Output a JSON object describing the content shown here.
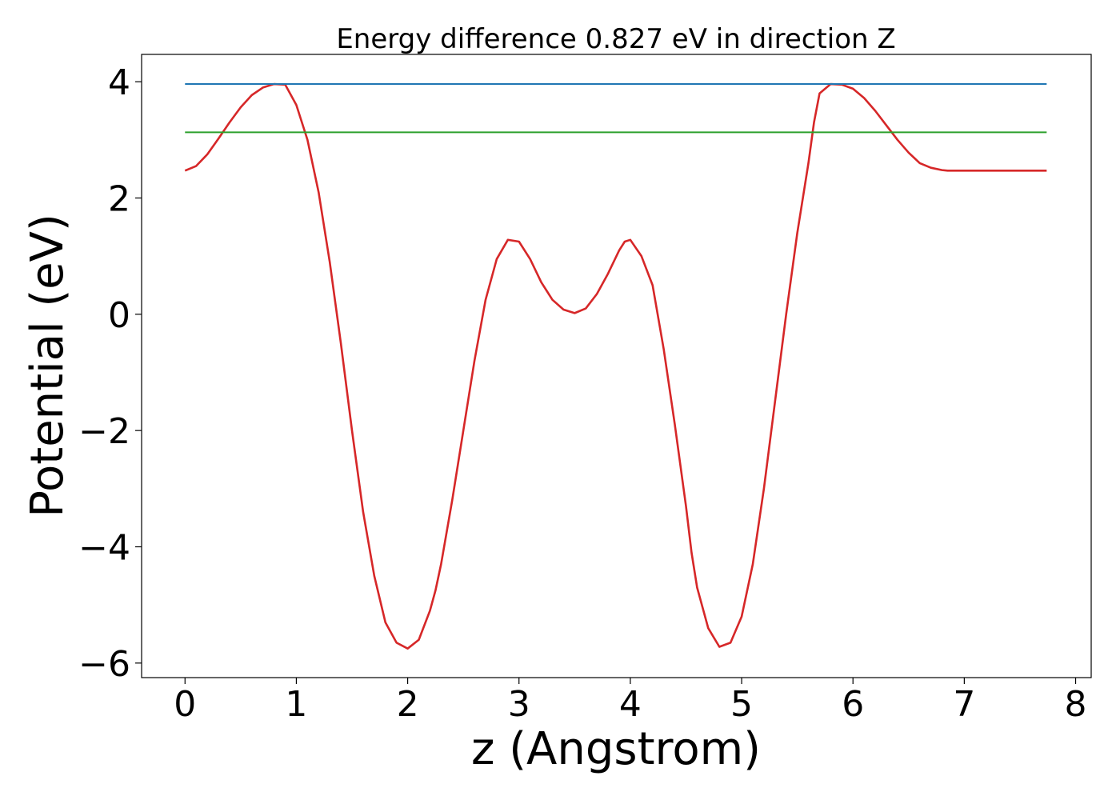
{
  "chart_data": {
    "type": "line",
    "title": "Energy difference 0.827 eV in direction Z",
    "xlabel": "z (Angstrom)",
    "ylabel": "Potential (eV)",
    "xlim": [
      -0.39,
      8.14
    ],
    "ylim": [
      -6.25,
      4.47
    ],
    "xticks": [
      0,
      1,
      2,
      3,
      4,
      5,
      6,
      7,
      8
    ],
    "yticks": [
      -6,
      -4,
      -2,
      0,
      2,
      4
    ],
    "xtick_labels": [
      "0",
      "1",
      "2",
      "3",
      "4",
      "5",
      "6",
      "7",
      "8"
    ],
    "ytick_labels": [
      "−6",
      "−4",
      "−2",
      "0",
      "2",
      "4"
    ],
    "grid": false,
    "series": [
      {
        "color": "#d62728",
        "x": [
          0.0,
          0.1,
          0.2,
          0.3,
          0.4,
          0.5,
          0.6,
          0.7,
          0.8,
          0.9,
          1.0,
          1.05,
          1.1,
          1.2,
          1.3,
          1.4,
          1.5,
          1.6,
          1.7,
          1.8,
          1.9,
          2.0,
          2.1,
          2.2,
          2.25,
          2.3,
          2.4,
          2.5,
          2.6,
          2.7,
          2.8,
          2.9,
          3.0,
          3.1,
          3.2,
          3.25,
          3.3,
          3.4,
          3.5,
          3.6,
          3.7,
          3.8,
          3.9,
          3.95,
          4.0,
          4.1,
          4.2,
          4.3,
          4.4,
          4.5,
          4.55,
          4.6,
          4.7,
          4.8,
          4.9,
          5.0,
          5.1,
          5.2,
          5.3,
          5.4,
          5.5,
          5.6,
          5.65,
          5.7,
          5.8,
          5.9,
          6.0,
          6.1,
          6.2,
          6.3,
          6.4,
          6.5,
          6.6,
          6.7,
          6.8,
          6.85,
          6.9,
          7.0,
          7.1,
          7.2,
          7.3,
          7.4,
          7.5,
          7.6,
          7.7,
          7.74
        ],
        "y": [
          2.47,
          2.55,
          2.75,
          3.02,
          3.3,
          3.56,
          3.77,
          3.9,
          3.96,
          3.95,
          3.6,
          3.3,
          3.0,
          2.1,
          0.9,
          -0.5,
          -2.0,
          -3.4,
          -4.5,
          -5.3,
          -5.65,
          -5.75,
          -5.6,
          -5.1,
          -4.75,
          -4.3,
          -3.2,
          -2.0,
          -0.8,
          0.25,
          0.95,
          1.28,
          1.25,
          0.95,
          0.55,
          0.4,
          0.25,
          0.08,
          0.02,
          0.1,
          0.35,
          0.7,
          1.1,
          1.25,
          1.28,
          1.0,
          0.5,
          -0.6,
          -1.9,
          -3.3,
          -4.1,
          -4.7,
          -5.4,
          -5.72,
          -5.65,
          -5.2,
          -4.3,
          -3.0,
          -1.5,
          0.0,
          1.4,
          2.6,
          3.3,
          3.8,
          3.96,
          3.95,
          3.88,
          3.72,
          3.5,
          3.25,
          3.0,
          2.78,
          2.6,
          2.52,
          2.48,
          2.47,
          2.47,
          2.47,
          2.47,
          2.47,
          2.47,
          2.47,
          2.47,
          2.47,
          2.47,
          2.47
        ]
      },
      {
        "color": "#1f77b4",
        "x": [
          0.0,
          7.74
        ],
        "y": [
          3.96,
          3.96
        ]
      },
      {
        "color": "#2ca02c",
        "x": [
          0.0,
          7.74
        ],
        "y": [
          3.13,
          3.13
        ]
      }
    ]
  }
}
